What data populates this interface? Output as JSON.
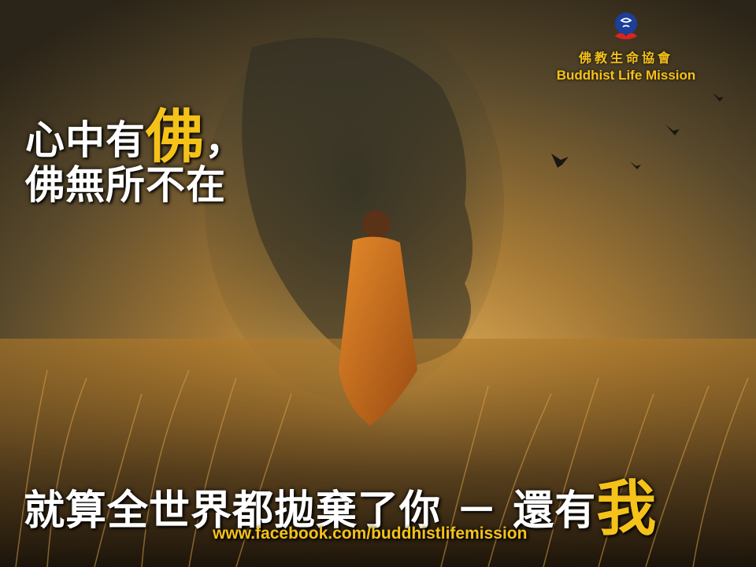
{
  "logo": {
    "name_zh": "佛教生命協會",
    "name_en": "Buddhist Life Mission"
  },
  "quote": {
    "line1_text": "心中有",
    "line1_highlight": "佛",
    "line1_punct": "，",
    "line2": "佛無所不在",
    "line3_text": "就算全世界都拋棄了你 － 還有",
    "line3_highlight": "我"
  },
  "footer": {
    "url": "www.facebook.com/buddhistlifemission"
  },
  "colors": {
    "accent_gold": "#f5c21a",
    "text_white": "#ffffff",
    "robe_orange": "#d9791f"
  }
}
